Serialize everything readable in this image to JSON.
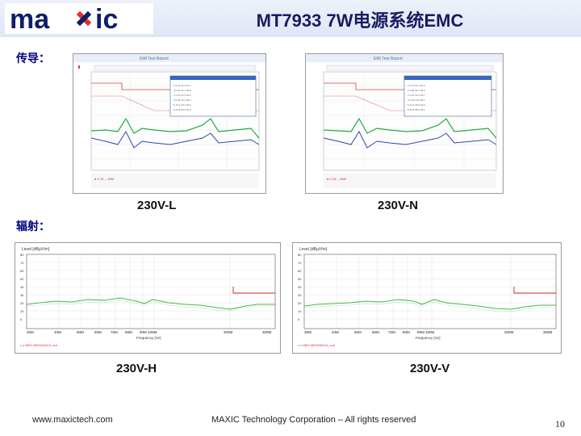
{
  "header": {
    "title": "MT7933 7W电源系统EMC",
    "logo_text": "maxic",
    "colors": {
      "brand_dark": "#0d1f6b",
      "brand_red": "#e0312a",
      "header_bg": "#e4e9f8"
    }
  },
  "sections": {
    "conducted_label": "传导：",
    "radiated_label": "辐射："
  },
  "captions": {
    "conducted_l": "230V-L",
    "conducted_n": "230V-N",
    "radiated_h": "230V-H",
    "radiated_v": "230V-V"
  },
  "footer": {
    "website": "www.maxictech.com",
    "copyright": "MAXIC Technology Corporation – All rights reserved",
    "page_number": "10"
  },
  "radiated_charts": {
    "level_label": "Level [dBµV/m]",
    "y_ticks": [
      "80",
      "70",
      "60",
      "50",
      "40",
      "30",
      "20",
      "10",
      "0"
    ],
    "h_x_ticks": [
      "30M",
      "40M",
      "50M",
      "60M",
      "70M",
      "80M",
      "90M 100M",
      "200M",
      "300M"
    ],
    "v_x_ticks": [
      "30M",
      "40M",
      "50M",
      "60M",
      "70M",
      "80M",
      "90M 100M",
      "200M",
      "300M"
    ],
    "x_label": "Frequency [Hz]"
  }
}
